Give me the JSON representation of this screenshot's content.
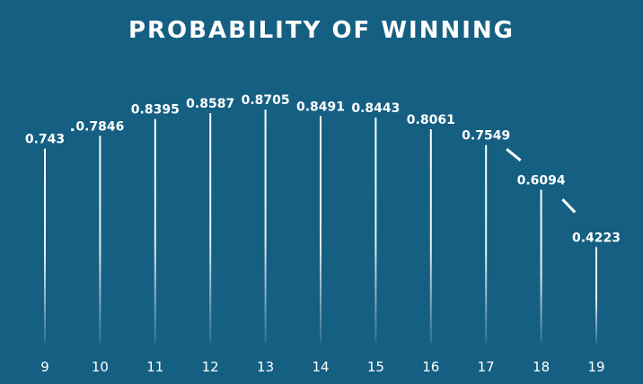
{
  "chart_data": {
    "type": "bar",
    "title": "PROBABILITY OF WINNING",
    "xlabel": "",
    "ylabel": "",
    "categories": [
      "9",
      "10",
      "11",
      "12",
      "13",
      "14",
      "15",
      "16",
      "17",
      "18",
      "19"
    ],
    "values": [
      0.743,
      0.7846,
      0.8395,
      0.8587,
      0.8705,
      0.8491,
      0.8443,
      0.8061,
      0.7549,
      0.6094,
      0.4223
    ],
    "value_labels": [
      "0.743",
      "0.7846",
      "0.8395",
      "0.8587",
      "0.8705",
      "0.8491",
      "0.8443",
      "0.8061",
      "0.7549",
      "0.6094",
      "0.4223"
    ],
    "ylim": [
      0,
      1
    ],
    "grid": false,
    "legend": "none"
  },
  "colors": {
    "background": "#155f82",
    "bar": "#ffffff",
    "text": "#ffffff"
  }
}
